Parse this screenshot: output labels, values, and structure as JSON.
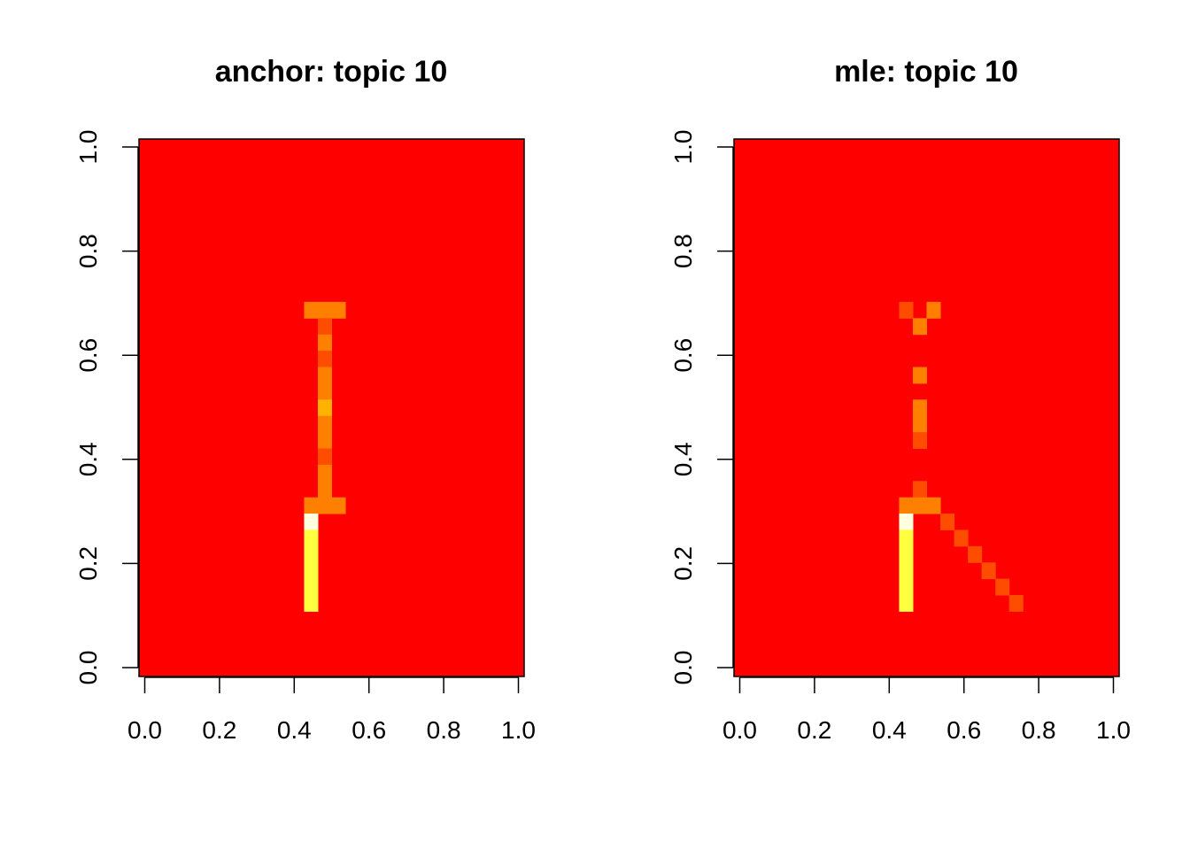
{
  "chart_data": [
    {
      "type": "heatmap",
      "title": "anchor: topic 10",
      "xlabel": "",
      "ylabel": "",
      "xlim": [
        0.0,
        1.0
      ],
      "ylim": [
        0.0,
        1.0
      ],
      "x_ticks": [
        "0.0",
        "0.2",
        "0.4",
        "0.6",
        "0.8",
        "1.0"
      ],
      "y_ticks": [
        "0.0",
        "0.2",
        "0.4",
        "0.6",
        "0.8",
        "1.0"
      ],
      "grid": false,
      "legend": "none",
      "grid_size": {
        "cols": 28,
        "rows": 33
      },
      "background_value": 0.0,
      "palette": [
        "#FF0000",
        "#FF4D00",
        "#FF8000",
        "#FFB300",
        "#FFE600",
        "#FFFF40",
        "#FFFFDF"
      ],
      "cells": [
        {
          "col": 12,
          "row": 10,
          "value": 0.3
        },
        {
          "col": 13,
          "row": 10,
          "value": 0.3
        },
        {
          "col": 14,
          "row": 10,
          "value": 0.4
        },
        {
          "col": 13,
          "row": 11,
          "value": 0.2
        },
        {
          "col": 13,
          "row": 12,
          "value": 0.3
        },
        {
          "col": 13,
          "row": 13,
          "value": 0.2
        },
        {
          "col": 13,
          "row": 14,
          "value": 0.4
        },
        {
          "col": 13,
          "row": 15,
          "value": 0.3
        },
        {
          "col": 13,
          "row": 16,
          "value": 0.5
        },
        {
          "col": 13,
          "row": 17,
          "value": 0.3
        },
        {
          "col": 13,
          "row": 18,
          "value": 0.3
        },
        {
          "col": 13,
          "row": 19,
          "value": 0.2
        },
        {
          "col": 13,
          "row": 20,
          "value": 0.3
        },
        {
          "col": 13,
          "row": 21,
          "value": 0.3
        },
        {
          "col": 12,
          "row": 22,
          "value": 0.35
        },
        {
          "col": 13,
          "row": 22,
          "value": 0.35
        },
        {
          "col": 14,
          "row": 22,
          "value": 0.35
        },
        {
          "col": 12,
          "row": 23,
          "value": 1.0
        },
        {
          "col": 12,
          "row": 24,
          "value": 0.85
        },
        {
          "col": 12,
          "row": 25,
          "value": 0.85
        },
        {
          "col": 12,
          "row": 26,
          "value": 0.85
        },
        {
          "col": 12,
          "row": 27,
          "value": 0.85
        },
        {
          "col": 12,
          "row": 28,
          "value": 0.85
        }
      ]
    },
    {
      "type": "heatmap",
      "title": "mle: topic 10",
      "xlabel": "",
      "ylabel": "",
      "xlim": [
        0.0,
        1.0
      ],
      "ylim": [
        0.0,
        1.0
      ],
      "x_ticks": [
        "0.0",
        "0.2",
        "0.4",
        "0.6",
        "0.8",
        "1.0"
      ],
      "y_ticks": [
        "0.0",
        "0.2",
        "0.4",
        "0.6",
        "0.8",
        "1.0"
      ],
      "grid": false,
      "legend": "none",
      "grid_size": {
        "cols": 28,
        "rows": 33
      },
      "background_value": 0.0,
      "palette": [
        "#FF0000",
        "#FF4D00",
        "#FF8000",
        "#FFB300",
        "#FFE600",
        "#FFFF40",
        "#FFFFDF"
      ],
      "cells": [
        {
          "col": 12,
          "row": 10,
          "value": 0.2
        },
        {
          "col": 14,
          "row": 10,
          "value": 0.35
        },
        {
          "col": 13,
          "row": 11,
          "value": 0.25
        },
        {
          "col": 13,
          "row": 14,
          "value": 0.3
        },
        {
          "col": 13,
          "row": 16,
          "value": 0.3
        },
        {
          "col": 13,
          "row": 17,
          "value": 0.25
        },
        {
          "col": 13,
          "row": 18,
          "value": 0.2
        },
        {
          "col": 13,
          "row": 21,
          "value": 0.2
        },
        {
          "col": 12,
          "row": 22,
          "value": 0.3
        },
        {
          "col": 13,
          "row": 22,
          "value": 0.3
        },
        {
          "col": 14,
          "row": 22,
          "value": 0.3
        },
        {
          "col": 12,
          "row": 23,
          "value": 1.0
        },
        {
          "col": 15,
          "row": 23,
          "value": 0.2
        },
        {
          "col": 12,
          "row": 24,
          "value": 0.8
        },
        {
          "col": 16,
          "row": 24,
          "value": 0.2
        },
        {
          "col": 12,
          "row": 25,
          "value": 0.9
        },
        {
          "col": 17,
          "row": 25,
          "value": 0.2
        },
        {
          "col": 12,
          "row": 26,
          "value": 0.9
        },
        {
          "col": 18,
          "row": 26,
          "value": 0.2
        },
        {
          "col": 12,
          "row": 27,
          "value": 0.85
        },
        {
          "col": 19,
          "row": 27,
          "value": 0.2
        },
        {
          "col": 12,
          "row": 28,
          "value": 0.8
        },
        {
          "col": 20,
          "row": 28,
          "value": 0.2
        }
      ]
    }
  ]
}
